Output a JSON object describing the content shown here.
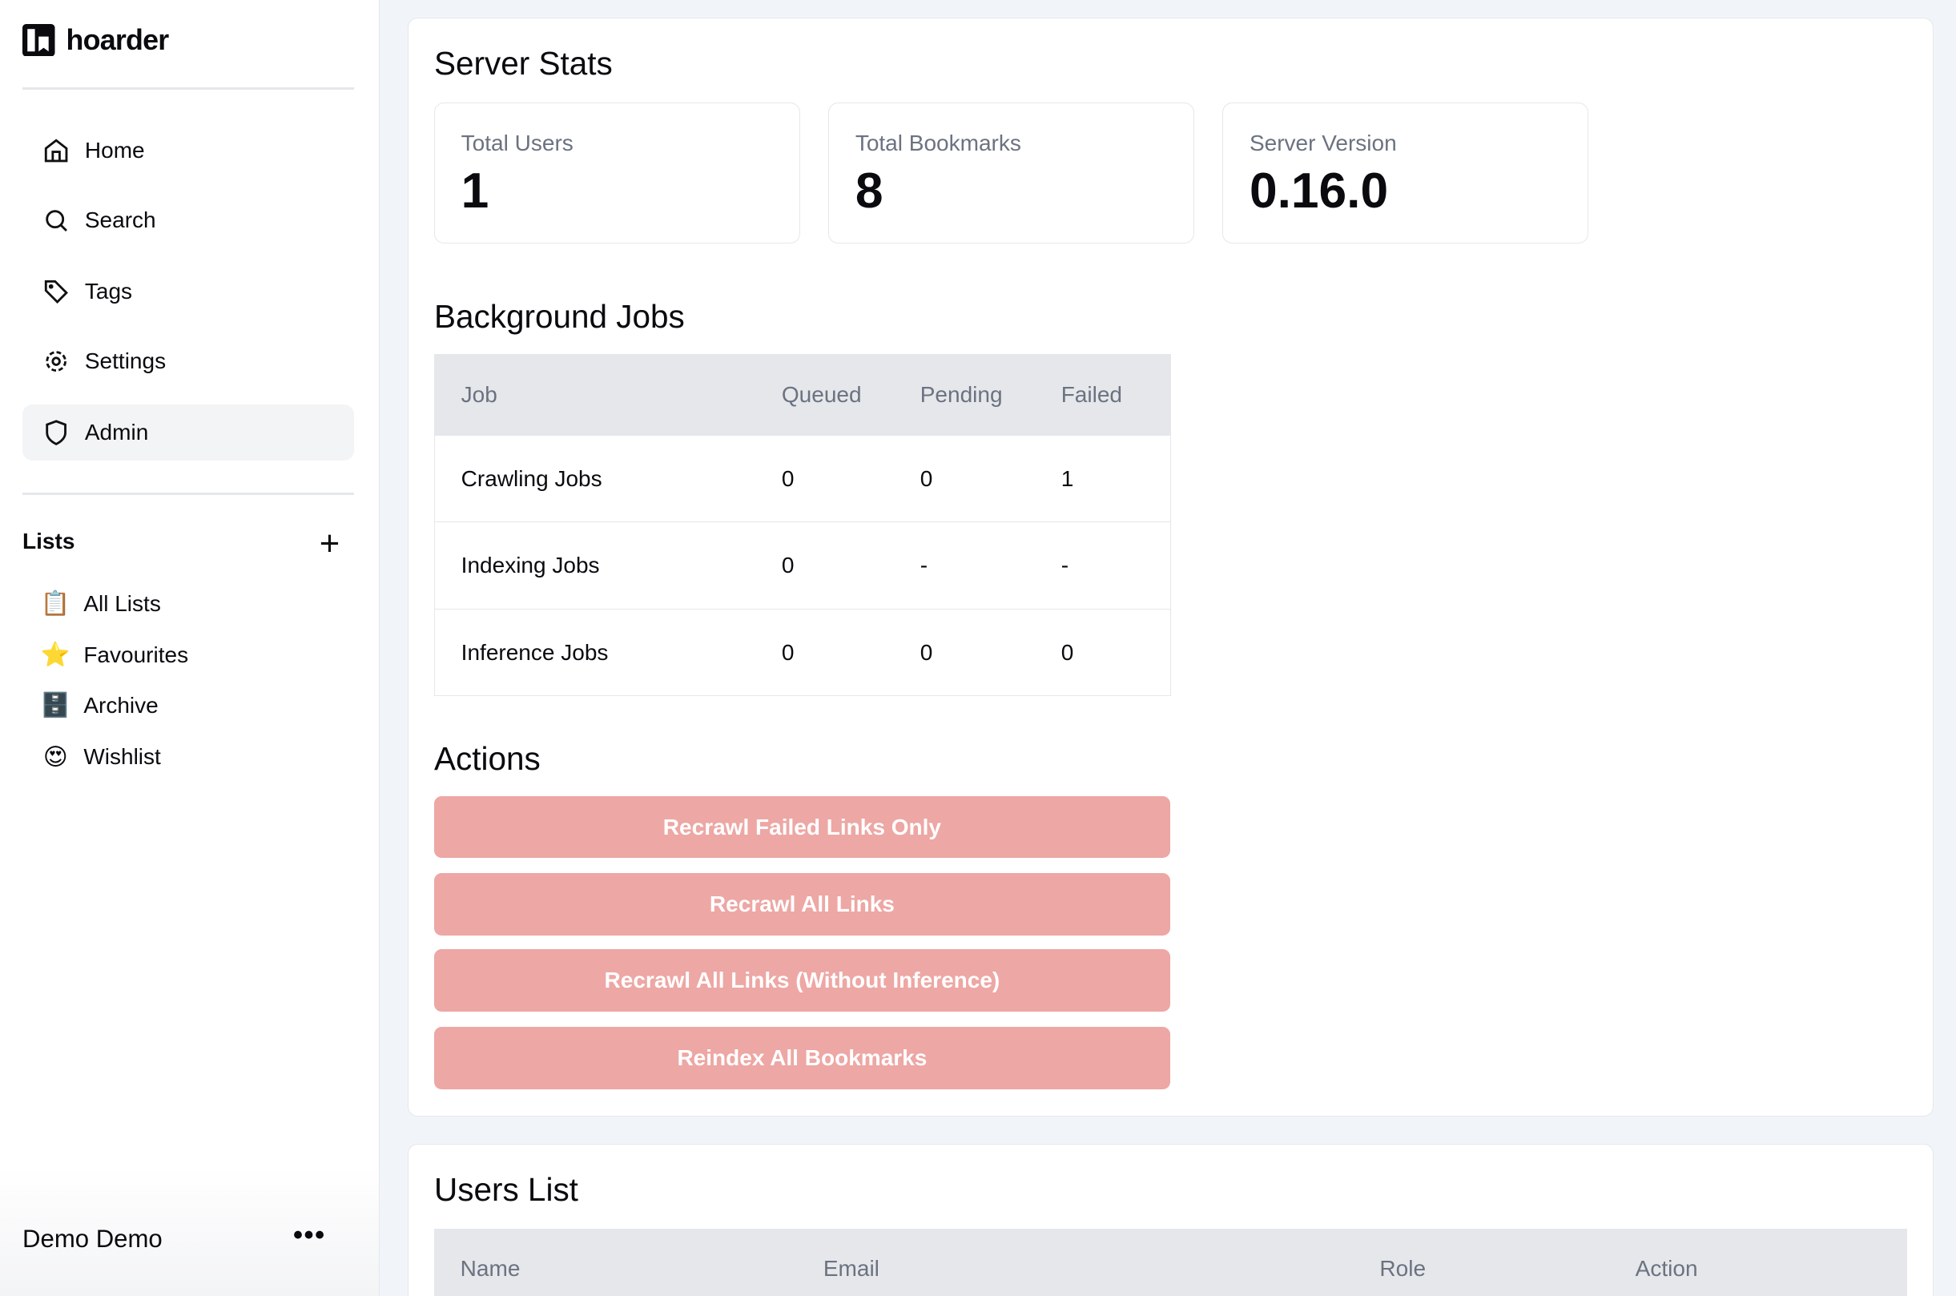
{
  "app": {
    "name": "hoarder"
  },
  "sidebar": {
    "nav": [
      {
        "label": "Home",
        "icon": "home-icon"
      },
      {
        "label": "Search",
        "icon": "search-icon"
      },
      {
        "label": "Tags",
        "icon": "tag-icon"
      },
      {
        "label": "Settings",
        "icon": "gear-icon"
      },
      {
        "label": "Admin",
        "icon": "shield-icon",
        "active": true
      }
    ],
    "lists_title": "Lists",
    "lists": [
      {
        "label": "All Lists",
        "emoji": "📋"
      },
      {
        "label": "Favourites",
        "emoji": "⭐"
      },
      {
        "label": "Archive",
        "emoji": "🗄️"
      },
      {
        "label": "Wishlist",
        "emoji": "😍"
      }
    ],
    "user": "Demo Demo"
  },
  "stats": {
    "title": "Server Stats",
    "items": [
      {
        "label": "Total Users",
        "value": "1"
      },
      {
        "label": "Total Bookmarks",
        "value": "8"
      },
      {
        "label": "Server Version",
        "value": "0.16.0"
      }
    ]
  },
  "jobs": {
    "title": "Background Jobs",
    "headers": [
      "Job",
      "Queued",
      "Pending",
      "Failed"
    ],
    "rows": [
      [
        "Crawling Jobs",
        "0",
        "0",
        "1"
      ],
      [
        "Indexing Jobs",
        "0",
        "-",
        "-"
      ],
      [
        "Inference Jobs",
        "0",
        "0",
        "0"
      ]
    ]
  },
  "actions": {
    "title": "Actions",
    "buttons": [
      "Recrawl Failed Links Only",
      "Recrawl All Links",
      "Recrawl All Links (Without Inference)",
      "Reindex All Bookmarks"
    ],
    "color": "#eda7a4"
  },
  "users": {
    "title": "Users List",
    "headers": [
      "Name",
      "Email",
      "Role",
      "Action"
    ]
  }
}
